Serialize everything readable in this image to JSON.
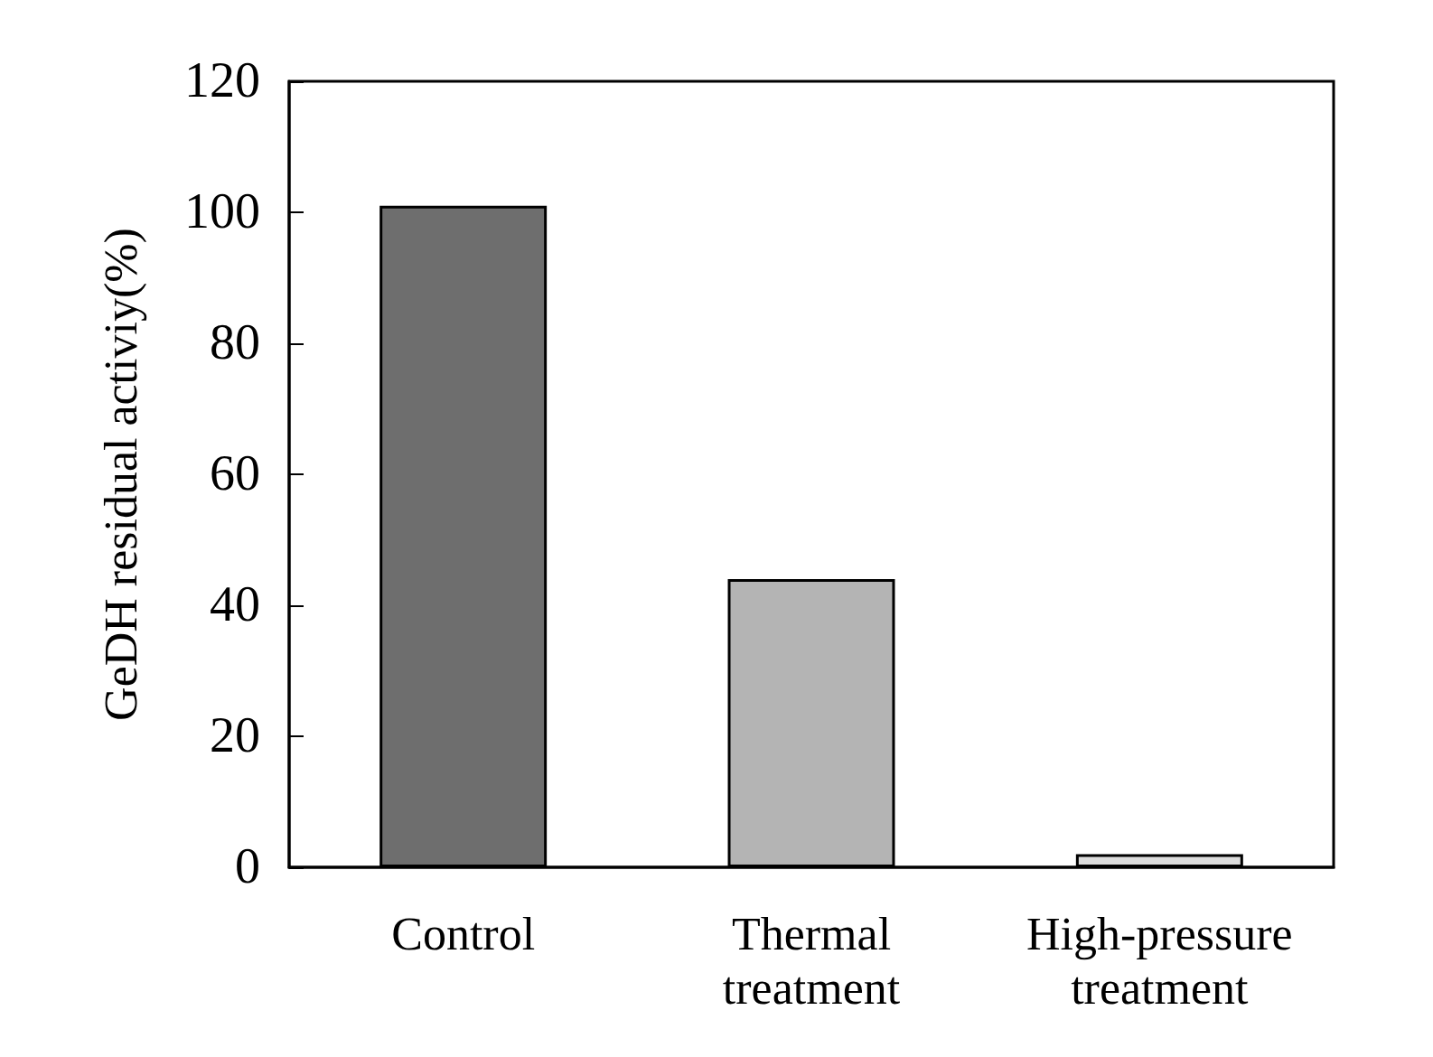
{
  "chart_data": {
    "type": "bar",
    "categories": [
      "Control",
      "Thermal\ntreatment",
      "High-pressure\ntreatment"
    ],
    "values": [
      101,
      44,
      2
    ],
    "colors": [
      "#6e6e6e",
      "#b4b4b4",
      "#dcdcdc"
    ],
    "ylabel": "GeDH residual activiy(%)",
    "ylim": [
      0,
      120
    ],
    "yticks": [
      0,
      20,
      40,
      60,
      80,
      100,
      120
    ],
    "grid": false
  }
}
